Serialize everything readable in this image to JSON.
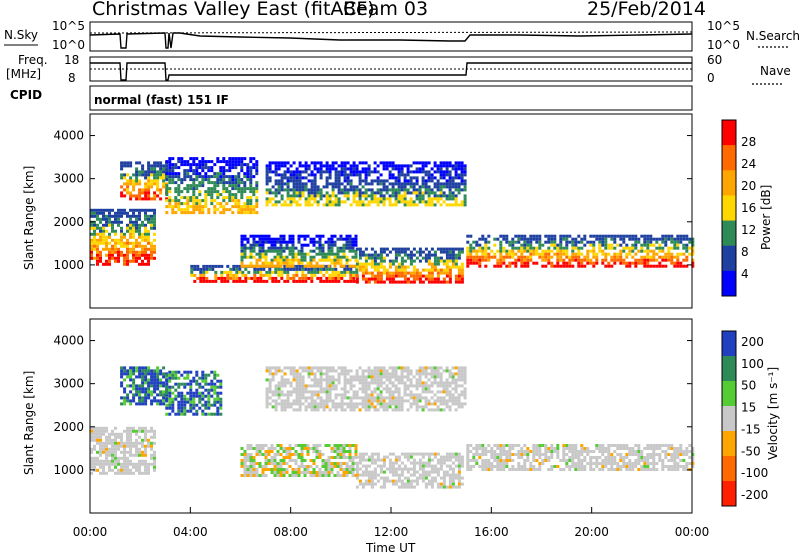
{
  "header": {
    "radar": "Christmas Valley East (fitACF)",
    "beam": "Beam 03",
    "date": "25/Feb/2014"
  },
  "panels": {
    "nsky_label": "N.Sky",
    "nsky_ticks": [
      "10^5",
      "10^0"
    ],
    "nsearch_label": "N.Search",
    "freq_label": "Freq.",
    "freq_unit": "[MHz]",
    "freq_ticks": [
      "18",
      "8"
    ],
    "nave_label": "Nave",
    "nave_ticks": [
      "60",
      "0"
    ],
    "cpid_label": "CPID",
    "cpid_value": "normal (fast) 151 IF"
  },
  "chart_data": [
    {
      "type": "heatmap",
      "name": "power",
      "ylabel": "Slant Range [km]",
      "yticks": [
        1000,
        2000,
        3000,
        4000
      ],
      "ylim": [
        0,
        4500
      ],
      "xlim": [
        0,
        24
      ],
      "colorbar": {
        "label": "Power [dB]",
        "ticks": [
          "28",
          "24",
          "20",
          "16",
          "12",
          "8",
          "4"
        ],
        "colors": [
          "#ff0000",
          "#ff6a00",
          "#ffa500",
          "#ffd700",
          "#2e8b57",
          "#1e40a0",
          "#0000ff"
        ]
      },
      "echo_regions": [
        {
          "t": [
            0,
            2.6
          ],
          "range": [
            1000,
            2300
          ],
          "level": "high"
        },
        {
          "t": [
            1.2,
            3.0
          ],
          "range": [
            2500,
            3400
          ],
          "level": "high"
        },
        {
          "t": [
            3.0,
            6.6
          ],
          "range": [
            2200,
            3500
          ],
          "level": "mid"
        },
        {
          "t": [
            4.0,
            10.6
          ],
          "range": [
            650,
            1000
          ],
          "level": "high"
        },
        {
          "t": [
            6.0,
            10.6
          ],
          "range": [
            1000,
            1700
          ],
          "level": "mid"
        },
        {
          "t": [
            7.0,
            15.0
          ],
          "range": [
            2400,
            3400
          ],
          "level": "low"
        },
        {
          "t": [
            10.6,
            14.9
          ],
          "range": [
            600,
            1400
          ],
          "level": "high"
        },
        {
          "t": [
            15.0,
            24
          ],
          "range": [
            1000,
            1700
          ],
          "level": "high"
        }
      ]
    },
    {
      "type": "heatmap",
      "name": "velocity",
      "ylabel": "Slant Range [km]",
      "yticks": [
        1000,
        2000,
        3000,
        4000
      ],
      "ylim": [
        0,
        4500
      ],
      "xlabel": "Time UT",
      "xticks": [
        "00:00",
        "04:00",
        "08:00",
        "12:00",
        "16:00",
        "20:00",
        "00:00"
      ],
      "xlim": [
        0,
        24
      ],
      "colorbar": {
        "label": "Velocity [m s⁻¹]",
        "ticks": [
          "200",
          "100",
          "50",
          "15",
          "-15",
          "-50",
          "-100",
          "-200"
        ],
        "colors": [
          "#2040c0",
          "#2e8b57",
          "#55cc33",
          "#c8c8c8",
          "#ffa500",
          "#ff6a00",
          "#ff2000"
        ]
      },
      "echo_regions": [
        {
          "t": [
            0,
            2.6
          ],
          "range": [
            900,
            2000
          ],
          "level": "ground"
        },
        {
          "t": [
            1.2,
            3.0
          ],
          "range": [
            2500,
            3400
          ],
          "level": "toward"
        },
        {
          "t": [
            3.0,
            5.2
          ],
          "range": [
            2300,
            3300
          ],
          "level": "toward"
        },
        {
          "t": [
            6.0,
            10.6
          ],
          "range": [
            900,
            1600
          ],
          "level": "away"
        },
        {
          "t": [
            7.0,
            15.0
          ],
          "range": [
            2400,
            3400
          ],
          "level": "ground"
        },
        {
          "t": [
            10.6,
            14.9
          ],
          "range": [
            600,
            1400
          ],
          "level": "ground"
        },
        {
          "t": [
            15.0,
            24
          ],
          "range": [
            1000,
            1600
          ],
          "level": "ground"
        }
      ]
    }
  ]
}
